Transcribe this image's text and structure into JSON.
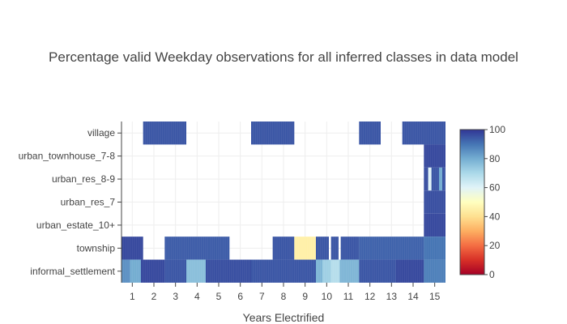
{
  "chart_data": {
    "type": "heatmap",
    "title": "Percentage valid Weekday observations for all inferred classes in data model",
    "xlabel": "Years Electrified",
    "ylabel": "",
    "x_ticks": [
      "1",
      "2",
      "3",
      "4",
      "5",
      "6",
      "7",
      "8",
      "9",
      "10",
      "11",
      "12",
      "13",
      "14",
      "15"
    ],
    "x_range": [
      0.5,
      15.5
    ],
    "categories": [
      "village",
      "urban_townhouse_7-8",
      "urban_res_8-9",
      "urban_res_7",
      "urban_estate_10+",
      "township",
      "informal_settlement"
    ],
    "colorbar": {
      "min": 0,
      "max": 100,
      "ticks": [
        "0",
        "20",
        "40",
        "60",
        "80",
        "100"
      ]
    },
    "colorscale": [
      [
        0.0,
        "#a50026"
      ],
      [
        0.1,
        "#d73027"
      ],
      [
        0.2,
        "#f46d43"
      ],
      [
        0.3,
        "#fdae61"
      ],
      [
        0.4,
        "#fee090"
      ],
      [
        0.5,
        "#ffffbf"
      ],
      [
        0.6,
        "#e0f3f8"
      ],
      [
        0.7,
        "#abd9e9"
      ],
      [
        0.8,
        "#74add1"
      ],
      [
        0.9,
        "#4575b4"
      ],
      [
        1.0,
        "#313695"
      ]
    ],
    "rows": [
      {
        "name": "village",
        "segments": [
          [
            1.5,
            3.5,
            95
          ],
          [
            6.5,
            8.5,
            95
          ],
          [
            11.5,
            12.5,
            95
          ],
          [
            13.5,
            15.5,
            95
          ]
        ]
      },
      {
        "name": "urban_townhouse_7-8",
        "segments": [
          [
            14.5,
            15.5,
            97
          ]
        ]
      },
      {
        "name": "urban_res_8-9",
        "segments": [
          [
            14.5,
            14.7,
            96
          ],
          [
            14.7,
            14.85,
            60
          ],
          [
            14.85,
            15.2,
            95
          ],
          [
            15.2,
            15.35,
            80
          ],
          [
            15.35,
            15.5,
            95
          ]
        ]
      },
      {
        "name": "urban_res_7",
        "segments": [
          [
            14.5,
            15.5,
            96
          ]
        ]
      },
      {
        "name": "urban_estate_10+",
        "segments": [
          [
            14.5,
            15.5,
            97
          ]
        ]
      },
      {
        "name": "township",
        "segments": [
          [
            0.5,
            1.5,
            97
          ],
          [
            2.5,
            5.5,
            94
          ],
          [
            7.5,
            8.5,
            95
          ],
          [
            8.5,
            9.5,
            45
          ],
          [
            9.5,
            10.1,
            95
          ],
          [
            10.2,
            10.55,
            95
          ],
          [
            10.65,
            11.5,
            95
          ],
          [
            11.5,
            14.5,
            93
          ],
          [
            14.5,
            15.5,
            90
          ]
        ]
      },
      {
        "name": "informal_settlement",
        "segments": [
          [
            0.5,
            0.9,
            85
          ],
          [
            0.9,
            1.4,
            80
          ],
          [
            1.4,
            2.5,
            97
          ],
          [
            2.5,
            3.5,
            95
          ],
          [
            3.5,
            4.4,
            76
          ],
          [
            4.4,
            6.5,
            96
          ],
          [
            6.5,
            9.5,
            95
          ],
          [
            9.5,
            9.8,
            78
          ],
          [
            9.8,
            10.2,
            72
          ],
          [
            10.2,
            10.6,
            68
          ],
          [
            10.6,
            11.5,
            78
          ],
          [
            11.5,
            13.2,
            95
          ],
          [
            13.2,
            14.5,
            97
          ],
          [
            14.5,
            15.5,
            88
          ]
        ]
      }
    ]
  }
}
